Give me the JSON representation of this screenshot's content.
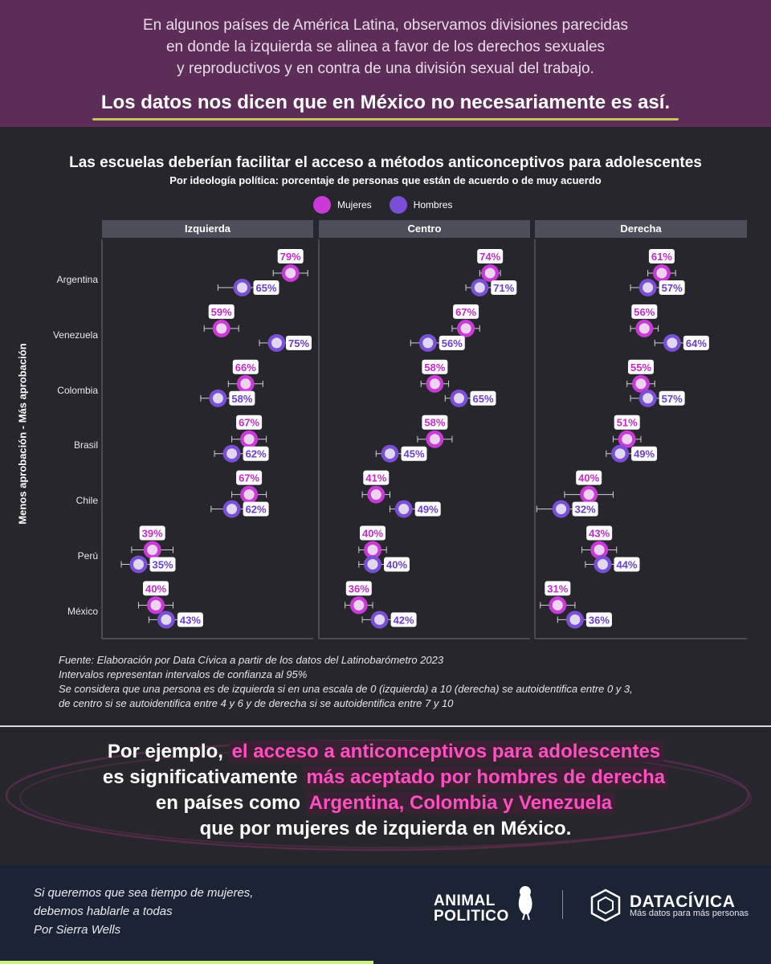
{
  "header": {
    "intro_line1": "En algunos países de América Latina, observamos divisiones parecidas",
    "intro_line2": "en donde la izquierda se alinea a favor de los derechos sexuales",
    "intro_line3": "y reproductivos y en contra de una división sexual del trabajo.",
    "headline": "Los datos nos dicen que en México no necesariamente es así."
  },
  "chart_data": {
    "type": "scatter",
    "title": "Las escuelas deberían facilitar el acceso a métodos anticonceptivos para adolescentes",
    "subtitle": "Por ideología política: porcentaje de personas que están de acuerdo o de muy acuerdo",
    "ylabel": "Menos aprobación - Más aprobación",
    "facets": [
      "Izquierda",
      "Centro",
      "Derecha"
    ],
    "categories": [
      "Argentina",
      "Venezuela",
      "Colombia",
      "Brasil",
      "Chile",
      "Perú",
      "México"
    ],
    "xlim": [
      30,
      80
    ],
    "legend_position": "top",
    "colors": {
      "Mujeres": "#c93ad6",
      "Hombres": "#7a4fd6"
    },
    "series": [
      {
        "name": "Mujeres",
        "values": {
          "Izquierda": [
            79,
            59,
            66,
            67,
            67,
            39,
            40
          ],
          "Centro": [
            74,
            67,
            58,
            58,
            41,
            40,
            36
          ],
          "Derecha": [
            61,
            56,
            55,
            51,
            40,
            43,
            31
          ]
        }
      },
      {
        "name": "Hombres",
        "values": {
          "Izquierda": [
            65,
            75,
            58,
            62,
            62,
            35,
            43
          ],
          "Centro": [
            71,
            56,
            65,
            45,
            49,
            40,
            42
          ],
          "Derecha": [
            57,
            64,
            57,
            49,
            32,
            44,
            36
          ]
        }
      }
    ],
    "ci_halfwidth": {
      "Mujeres": {
        "Izquierda": [
          5,
          5,
          5,
          5,
          5,
          6,
          5
        ],
        "Centro": [
          3,
          4,
          4,
          5,
          4,
          4,
          4
        ],
        "Derecha": [
          4,
          4,
          4,
          4,
          7,
          5,
          5
        ]
      },
      "Hombres": {
        "Izquierda": [
          7,
          5,
          5,
          5,
          6,
          5,
          5
        ],
        "Centro": [
          4,
          5,
          4,
          4,
          4,
          4,
          5
        ],
        "Derecha": [
          5,
          5,
          5,
          4,
          7,
          5,
          5
        ]
      }
    }
  },
  "notes": [
    "Fuente: Elaboración por Data Cívica a partir de los datos del Latinobarómetro 2023",
    "Intervalos representan intervalos de confianza al 95%",
    "Se considera que una persona es de izquierda si en una escala de 0 (izquierda) a 10 (derecha) se autoidentifica entre 0 y 3,",
    "de centro si se autoidentifica entre 4 y 6 y de derecha si se autoidentifica entre 7 y 10"
  ],
  "conclusion": {
    "p1": "Por ejemplo, ",
    "h1": "el acceso a anticonceptivos para adolescentes",
    "p2": "es significativamente ",
    "h2": "más aceptado por hombres de derecha",
    "p3": "en países como ",
    "h3": "Argentina, Colombia y Venezuela",
    "p4": "que por mujeres de izquierda en México."
  },
  "footer": {
    "tagline1": "Si queremos que sea tiempo de mujeres,",
    "tagline2": "debemos hablarle a todas",
    "tagline3": "Por Sierra Wells",
    "logo1_line1": "ANIMAL",
    "logo1_line2": "POLITICO",
    "logo2_name": "DATACÍVICA",
    "logo2_tagline": "Más datos para más personas"
  }
}
